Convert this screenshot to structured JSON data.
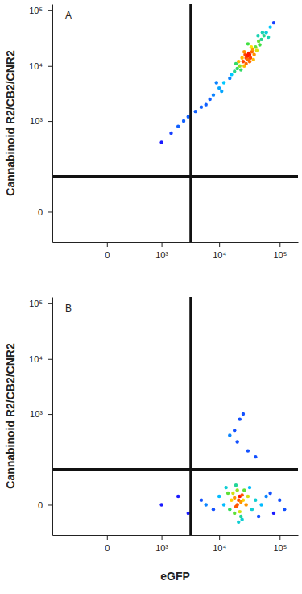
{
  "chart_data": [
    {
      "type": "scatter",
      "title": "A",
      "y_label": "Cannabinoid R2/CB2/CNR2",
      "log": true,
      "xlim": [
        -1000,
        200000
      ],
      "ylim": [
        -60,
        130000
      ],
      "xticks": [
        0,
        {
          "value": 1000,
          "label": "10³"
        },
        {
          "value": 10000,
          "label": "10⁴"
        },
        {
          "value": 100000,
          "label": "10⁵"
        }
      ],
      "yticks": [
        0,
        {
          "value": 1000,
          "label": "10³"
        },
        {
          "value": 10000,
          "label": "10⁴"
        },
        {
          "value": 100000,
          "label": "10⁵"
        }
      ],
      "gates": {
        "x": 3300,
        "y": 80
      },
      "x": [
        30000,
        32000,
        28000,
        35000,
        25000,
        30000,
        27000,
        33000,
        31000,
        29000,
        36000,
        40000,
        45000,
        50000,
        55000,
        60000,
        70000,
        80000,
        22000,
        20000,
        18000,
        16000,
        15000,
        24000,
        38000,
        42000,
        26000,
        34000,
        21000,
        47000,
        30000,
        37000,
        23000,
        19000,
        52000,
        65000,
        44000,
        28000,
        32000,
        26000,
        12000,
        10000,
        8000,
        6000,
        5000,
        3000,
        2000,
        1500,
        1000,
        4000,
        7000,
        2500,
        9000,
        11000
      ],
      "values": [
        15000,
        16000,
        14000,
        18000,
        12000,
        13000,
        16000,
        14000,
        17000,
        15500,
        20000,
        22000,
        28000,
        30000,
        35000,
        40000,
        50000,
        60000,
        10000,
        9000,
        8000,
        7000,
        6000,
        14000,
        16000,
        19000,
        18000,
        22000,
        12000,
        24000,
        25000,
        13000,
        8500,
        11000,
        40000,
        33000,
        35000,
        11000,
        12000,
        10000,
        5000,
        4000,
        3000,
        2000,
        1800,
        1200,
        800,
        600,
        400,
        1500,
        2500,
        1000,
        5000,
        3500
      ]
    },
    {
      "type": "scatter",
      "title": "B",
      "x_label": "eGFP",
      "y_label": "Cannabinoid R2/CB2/CNR2",
      "log": true,
      "xlim": [
        -1000,
        200000
      ],
      "ylim": [
        -60,
        130000
      ],
      "xticks": [
        0,
        {
          "value": 1000,
          "label": "10³"
        },
        {
          "value": 10000,
          "label": "10⁴"
        },
        {
          "value": 100000,
          "label": "10⁵"
        }
      ],
      "yticks": [
        0,
        {
          "value": 1000,
          "label": "10³"
        },
        {
          "value": 10000,
          "label": "10⁴"
        },
        {
          "value": 100000,
          "label": "10⁵"
        }
      ],
      "gates": {
        "x": 3300,
        "y": 80
      },
      "x": [
        20000,
        22000,
        18000,
        25000,
        15000,
        20000,
        17000,
        23000,
        28000,
        30000,
        35000,
        40000,
        50000,
        60000,
        80000,
        100000,
        12000,
        10000,
        8000,
        13000,
        21000,
        26000,
        19000,
        24000,
        16000,
        14000,
        32000,
        45000,
        70000,
        120000,
        21000,
        19000,
        23000,
        18000,
        22000,
        24000,
        6000,
        5000,
        3000,
        2000,
        1000,
        20000,
        18000,
        22000,
        25000,
        30000,
        40000,
        15000
      ],
      "values": [
        0,
        10,
        -10,
        5,
        -5,
        20,
        15,
        -15,
        0,
        10,
        -5,
        5,
        0,
        10,
        -10,
        5,
        0,
        10,
        -5,
        25,
        -25,
        20,
        30,
        -20,
        5,
        15,
        25,
        -15,
        15,
        -5,
        5,
        -2,
        3,
        8,
        -8,
        12,
        0,
        5,
        -10,
        10,
        0,
        300,
        500,
        800,
        1000,
        200,
        150,
        400
      ]
    }
  ]
}
